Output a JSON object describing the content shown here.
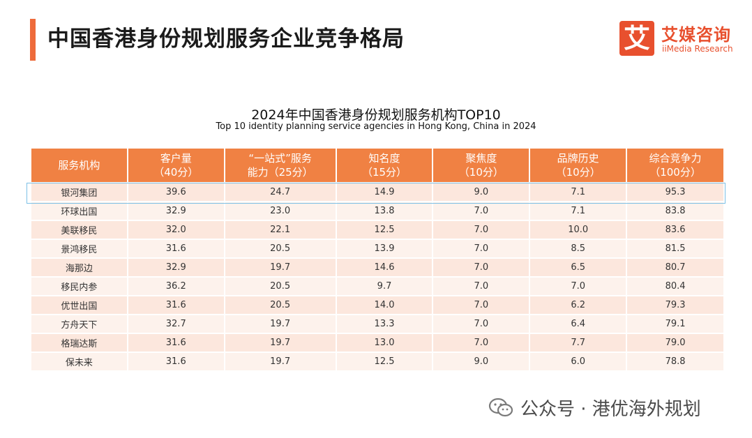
{
  "header": {
    "title": "中国香港身份规划服务企业竞争格局",
    "accent_color": "#ee6b3b"
  },
  "logo": {
    "mark": "艾",
    "name_cn": "艾媒咨询",
    "name_en": "iiMedia Research",
    "color": "#e8502e"
  },
  "chart": {
    "title_cn": "2024年中国香港身份规划服务机构TOP10",
    "title_en": "Top 10 identity planning service agencies in Hong Kong, China in 2024"
  },
  "table": {
    "columns": [
      {
        "line1": "服务机构",
        "line2": ""
      },
      {
        "line1": "客户量",
        "line2": "（40分）"
      },
      {
        "line1": "“一站式”服务",
        "line2": "能力（25分）"
      },
      {
        "line1": "知名度",
        "line2": "（15分）"
      },
      {
        "line1": "聚焦度",
        "line2": "（10分）"
      },
      {
        "line1": "品牌历史",
        "line2": "（10分）"
      },
      {
        "line1": "综合竞争力",
        "line2": "（100分）"
      }
    ],
    "rows": [
      [
        "银河集团",
        "39.6",
        "24.7",
        "14.9",
        "9.0",
        "7.1",
        "95.3"
      ],
      [
        "环球出国",
        "32.9",
        "23.0",
        "13.8",
        "7.0",
        "7.1",
        "83.8"
      ],
      [
        "美联移民",
        "32.0",
        "22.1",
        "12.5",
        "7.0",
        "10.0",
        "83.6"
      ],
      [
        "景鸿移民",
        "31.6",
        "20.5",
        "13.9",
        "7.0",
        "8.5",
        "81.5"
      ],
      [
        "海那边",
        "32.9",
        "19.7",
        "14.6",
        "7.0",
        "6.5",
        "80.7"
      ],
      [
        "移民内参",
        "36.2",
        "20.5",
        "9.7",
        "7.0",
        "7.0",
        "80.4"
      ],
      [
        "优世出国",
        "31.6",
        "20.5",
        "14.0",
        "7.0",
        "6.2",
        "79.3"
      ],
      [
        "方舟天下",
        "32.7",
        "19.7",
        "13.3",
        "7.0",
        "6.4",
        "79.1"
      ],
      [
        "格瑞达斯",
        "31.6",
        "19.7",
        "13.0",
        "7.0",
        "7.7",
        "79.0"
      ],
      [
        "保未来",
        "31.6",
        "19.7",
        "12.5",
        "9.0",
        "6.0",
        "78.8"
      ]
    ],
    "header_color": "#f08143"
  },
  "watermark": {
    "text": "公众号 · 港优海外规划",
    "icon": "wechat-icon"
  }
}
